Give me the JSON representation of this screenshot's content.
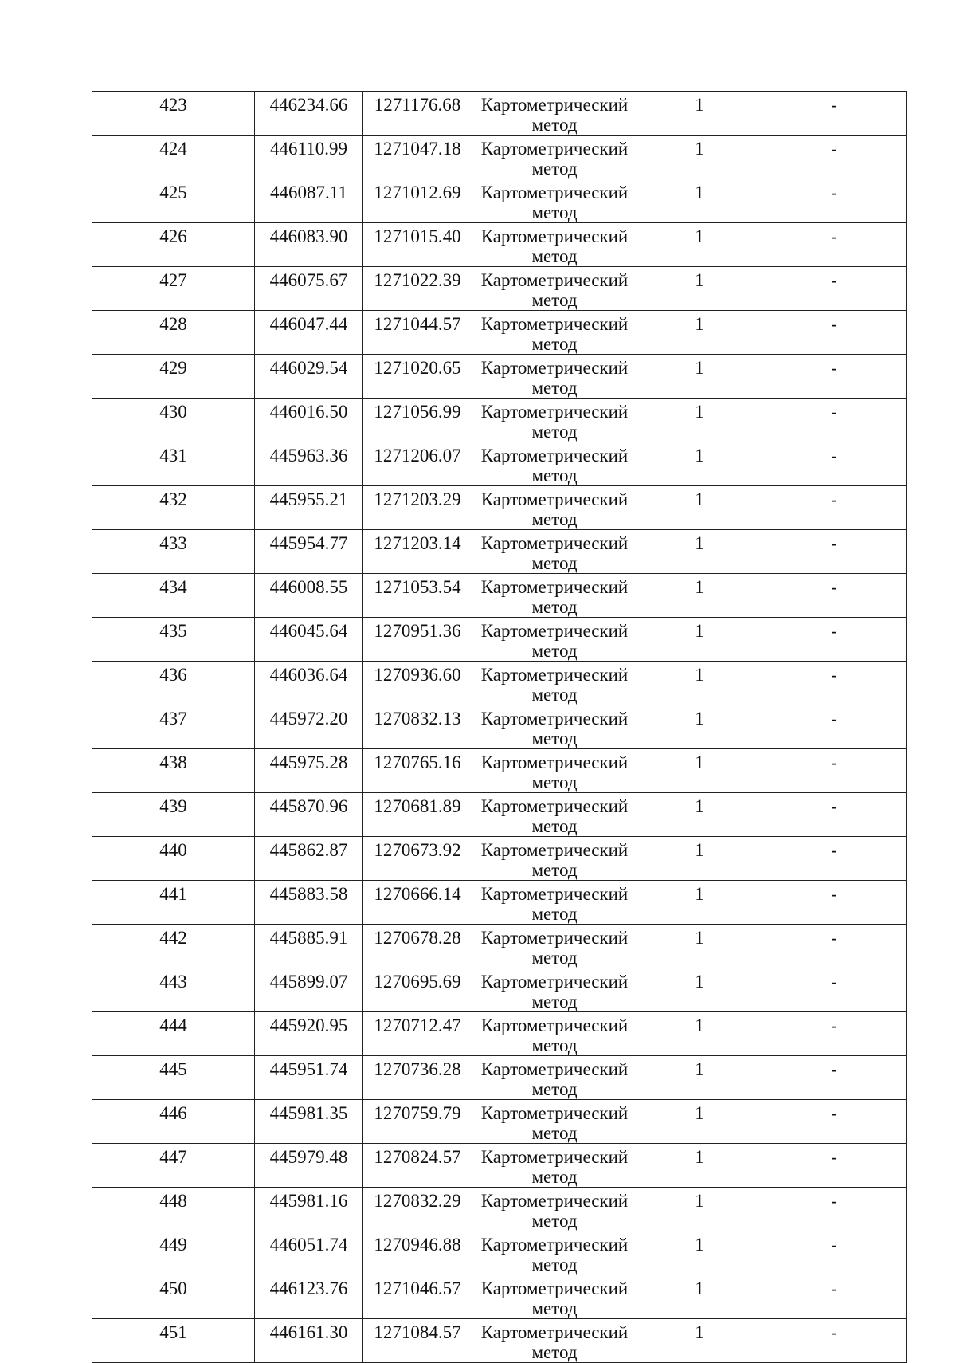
{
  "table": {
    "rows": [
      {
        "n": "423",
        "x": "446234.66",
        "y": "1271176.68",
        "method": "Картометрический метод",
        "accuracy": "1",
        "note": "-"
      },
      {
        "n": "424",
        "x": "446110.99",
        "y": "1271047.18",
        "method": "Картометрический метод",
        "accuracy": "1",
        "note": "-"
      },
      {
        "n": "425",
        "x": "446087.11",
        "y": "1271012.69",
        "method": "Картометрический метод",
        "accuracy": "1",
        "note": "-"
      },
      {
        "n": "426",
        "x": "446083.90",
        "y": "1271015.40",
        "method": "Картометрический метод",
        "accuracy": "1",
        "note": "-"
      },
      {
        "n": "427",
        "x": "446075.67",
        "y": "1271022.39",
        "method": "Картометрический метод",
        "accuracy": "1",
        "note": "-"
      },
      {
        "n": "428",
        "x": "446047.44",
        "y": "1271044.57",
        "method": "Картометрический метод",
        "accuracy": "1",
        "note": "-"
      },
      {
        "n": "429",
        "x": "446029.54",
        "y": "1271020.65",
        "method": "Картометрический метод",
        "accuracy": "1",
        "note": "-"
      },
      {
        "n": "430",
        "x": "446016.50",
        "y": "1271056.99",
        "method": "Картометрический метод",
        "accuracy": "1",
        "note": "-"
      },
      {
        "n": "431",
        "x": "445963.36",
        "y": "1271206.07",
        "method": "Картометрический метод",
        "accuracy": "1",
        "note": "-"
      },
      {
        "n": "432",
        "x": "445955.21",
        "y": "1271203.29",
        "method": "Картометрический метод",
        "accuracy": "1",
        "note": "-"
      },
      {
        "n": "433",
        "x": "445954.77",
        "y": "1271203.14",
        "method": "Картометрический метод",
        "accuracy": "1",
        "note": "-"
      },
      {
        "n": "434",
        "x": "446008.55",
        "y": "1271053.54",
        "method": "Картометрический метод",
        "accuracy": "1",
        "note": "-"
      },
      {
        "n": "435",
        "x": "446045.64",
        "y": "1270951.36",
        "method": "Картометрический метод",
        "accuracy": "1",
        "note": "-"
      },
      {
        "n": "436",
        "x": "446036.64",
        "y": "1270936.60",
        "method": "Картометрический метод",
        "accuracy": "1",
        "note": "-"
      },
      {
        "n": "437",
        "x": "445972.20",
        "y": "1270832.13",
        "method": "Картометрический метод",
        "accuracy": "1",
        "note": "-"
      },
      {
        "n": "438",
        "x": "445975.28",
        "y": "1270765.16",
        "method": "Картометрический метод",
        "accuracy": "1",
        "note": "-"
      },
      {
        "n": "439",
        "x": "445870.96",
        "y": "1270681.89",
        "method": "Картометрический метод",
        "accuracy": "1",
        "note": "-"
      },
      {
        "n": "440",
        "x": "445862.87",
        "y": "1270673.92",
        "method": "Картометрический метод",
        "accuracy": "1",
        "note": "-"
      },
      {
        "n": "441",
        "x": "445883.58",
        "y": "1270666.14",
        "method": "Картометрический метод",
        "accuracy": "1",
        "note": "-"
      },
      {
        "n": "442",
        "x": "445885.91",
        "y": "1270678.28",
        "method": "Картометрический метод",
        "accuracy": "1",
        "note": "-"
      },
      {
        "n": "443",
        "x": "445899.07",
        "y": "1270695.69",
        "method": "Картометрический метод",
        "accuracy": "1",
        "note": "-"
      },
      {
        "n": "444",
        "x": "445920.95",
        "y": "1270712.47",
        "method": "Картометрический метод",
        "accuracy": "1",
        "note": "-"
      },
      {
        "n": "445",
        "x": "445951.74",
        "y": "1270736.28",
        "method": "Картометрический метод",
        "accuracy": "1",
        "note": "-"
      },
      {
        "n": "446",
        "x": "445981.35",
        "y": "1270759.79",
        "method": "Картометрический метод",
        "accuracy": "1",
        "note": "-"
      },
      {
        "n": "447",
        "x": "445979.48",
        "y": "1270824.57",
        "method": "Картометрический метод",
        "accuracy": "1",
        "note": "-"
      },
      {
        "n": "448",
        "x": "445981.16",
        "y": "1270832.29",
        "method": "Картометрический метод",
        "accuracy": "1",
        "note": "-"
      },
      {
        "n": "449",
        "x": "446051.74",
        "y": "1270946.88",
        "method": "Картометрический метод",
        "accuracy": "1",
        "note": "-"
      },
      {
        "n": "450",
        "x": "446123.76",
        "y": "1271046.57",
        "method": "Картометрический метод",
        "accuracy": "1",
        "note": "-"
      },
      {
        "n": "451",
        "x": "446161.30",
        "y": "1271084.57",
        "method": "Картометрический метод",
        "accuracy": "1",
        "note": "-"
      }
    ]
  }
}
